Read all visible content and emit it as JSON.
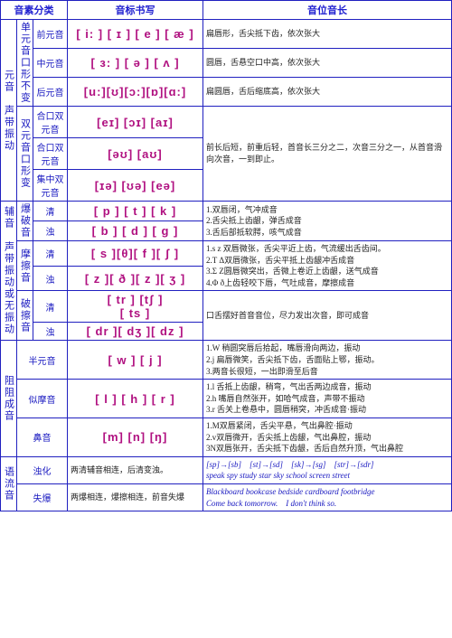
{
  "hdr": {
    "c1": "音素分类",
    "c2": "音标书写",
    "c3": "音位音长"
  },
  "vowels": {
    "side": "元音　声带振动",
    "danA": {
      "side": "单元音口形不变",
      "r1": "前元音",
      "r2": "中元音",
      "r3": "后元音"
    },
    "r1": {
      "ipa": "[ i: ] [ ɪ ] [ e ] [ æ ]",
      "d": "扁唇形，舌尖抵下齿，依次张大"
    },
    "r2": {
      "ipa": "[ ɜ: ] [ ə ] [ ʌ ]",
      "d": "圆唇，舌悬空口中高，依次张大"
    },
    "r3": {
      "ipa": "[u:][ʊ][ɔ:][ɒ][ɑ:]",
      "d": "扁圆唇，舌后缩底高，依次张大"
    },
    "shuangA": {
      "side": "双元音口形变",
      "r4": "合口双元音",
      "r5": "合口双元音",
      "r6": "集中双元音"
    },
    "r4": {
      "ipa": "[eɪ] [ɔɪ] [aɪ]",
      "d": "前长后短，前重后轻，首音长三分之二，次音三分之一，从首音滑向次音，一到即止。"
    },
    "r5": {
      "ipa": "[əʊ] [aʊ]"
    },
    "r6": {
      "ipa": "[ɪə] [ʊə] [eə]"
    }
  },
  "cons": {
    "side": "辅音　声带振动或无振动",
    "bao": {
      "side": "爆破音",
      "q": "清",
      "z": "浊"
    },
    "r7": {
      "ipa": "[ p ] [ t ] [ k ]",
      "d": "1.双唇闭，气冲成音\n2.舌尖抵上齿龈，弹舌成音\n3.舌后部抵软腭，咳气成音"
    },
    "r8": {
      "ipa": "[ b ] [ d ] [ g ]"
    },
    "ca": {
      "side": "摩擦音",
      "q": "清",
      "z": "浊"
    },
    "r9": {
      "ipa": "[ s ][θ][ f  ][ ʃ ]",
      "d": "1.s z 双唇微张，舌尖平近上齿，气流缓出舌齿间。\n2.T Δ双唇微张，舌尖平抵上齿龈冲舌成音\n3.Σ Ζ圆唇微突出，舌微上卷近上齿龈，送气成音\n4.Φ ð上齿轻咬下唇，气吐成音，摩擦成音"
    },
    "r10": {
      "ipa": "[ z ][ ð ][ z ][ ʒ ]"
    },
    "po": {
      "side": "破擦音",
      "q": "清",
      "z": "浊"
    },
    "r11": {
      "ipa": "[ tr  ] [tʃ   ]\n[ ts  ]",
      "d": "口舌摆好首音音位，尽力发出次音，即可成音"
    },
    "r12": {
      "ipa": "[ dr ][ dʒ ][ dz ]"
    }
  },
  "obs": {
    "side": "阻阻成音",
    "ban": {
      "side": "半元音"
    },
    "r13": {
      "ipa": "[ w ] [ j ]",
      "d": "1.W 稍圆突唇后拾起，嘴唇滑向两边，振动\n2.j 扁唇微笑，舌尖抵下齿，舌面贴上鄂，振动。\n3.两音长很短，一出即滑至后音"
    },
    "si": {
      "side": "似摩音"
    },
    "r14": {
      "ipa": "[ l ] [ h ] [ r ]",
      "d": "1.l 舌抵上齿龈，稍弯，气出舌两边成音，振动\n2.h 嘴唇自然张开，如哈气成音，声带不振动\n3.r 舌关上卷悬中，圆唇稍突，冲舌成音·振动"
    },
    "bi": {
      "side": "鼻音"
    },
    "r15": {
      "ipa": "[m] [n] [ŋ]",
      "d": "1.M双唇紧闭，舌尖平悬，气出鼻腔·振动\n2.v双唇微开，舌尖抵上齿龈，气出鼻腔，振动\n3N双唇张开，舌尖抵下齿龈，舌后自然升顶，气出鼻腔"
    }
  },
  "liu": {
    "side": "语流音",
    "zhuo": {
      "lab": "浊化",
      "mid": "两清辅音相连，后清变浊。",
      "d": "[sp]→[sb]　[st]→[sd]　[sk]→[sg]　[str]→[sdr]\nspeak spy study star sky school screen street"
    },
    "shi": {
      "lab": "失爆",
      "mid": "两爆相连，爆擦相连，前音失爆",
      "d": "Blackboard  bookcase  bedside  cardboard  footbridge\nCome back tomorrow.　I don't think so."
    }
  }
}
